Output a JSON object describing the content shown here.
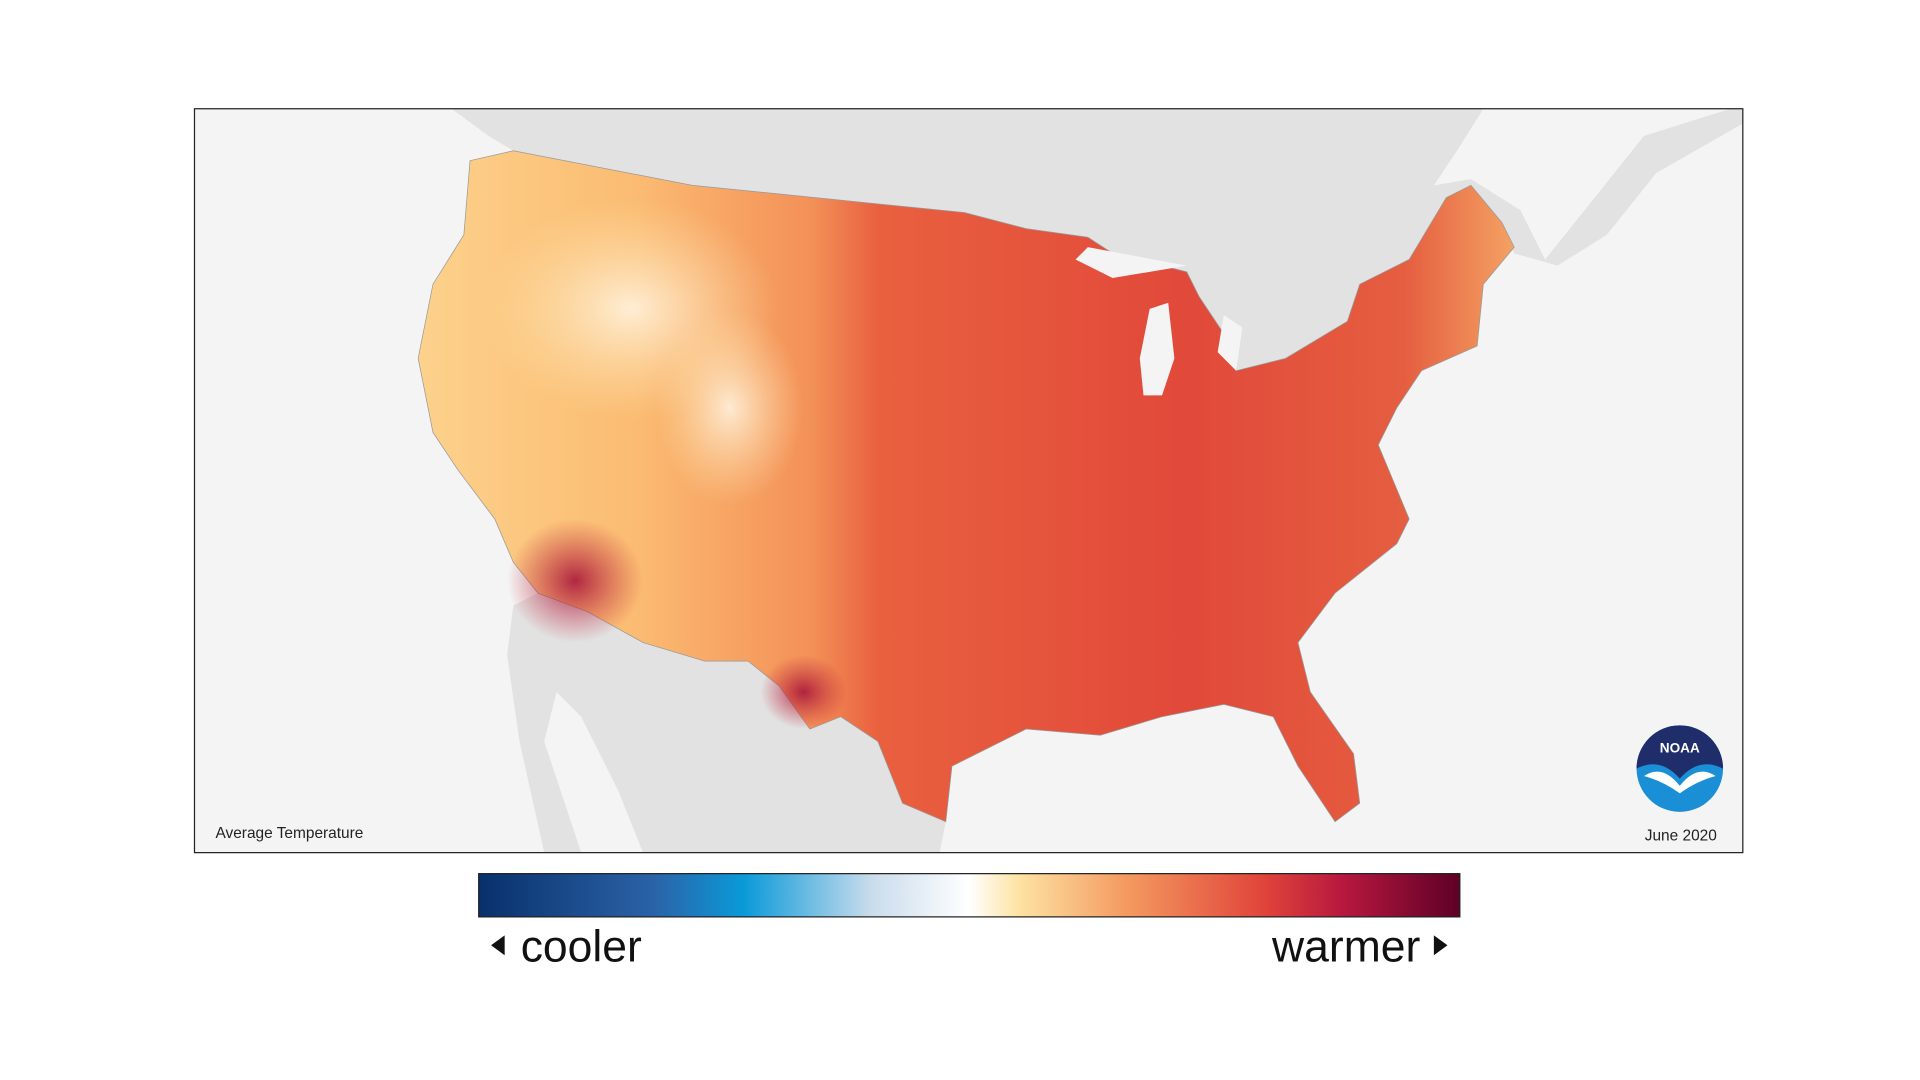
{
  "map": {
    "title": "Average Temperature",
    "date": "June 2020",
    "logo": "NOAA"
  },
  "legend": {
    "low": "cooler",
    "high": "warmer"
  }
}
